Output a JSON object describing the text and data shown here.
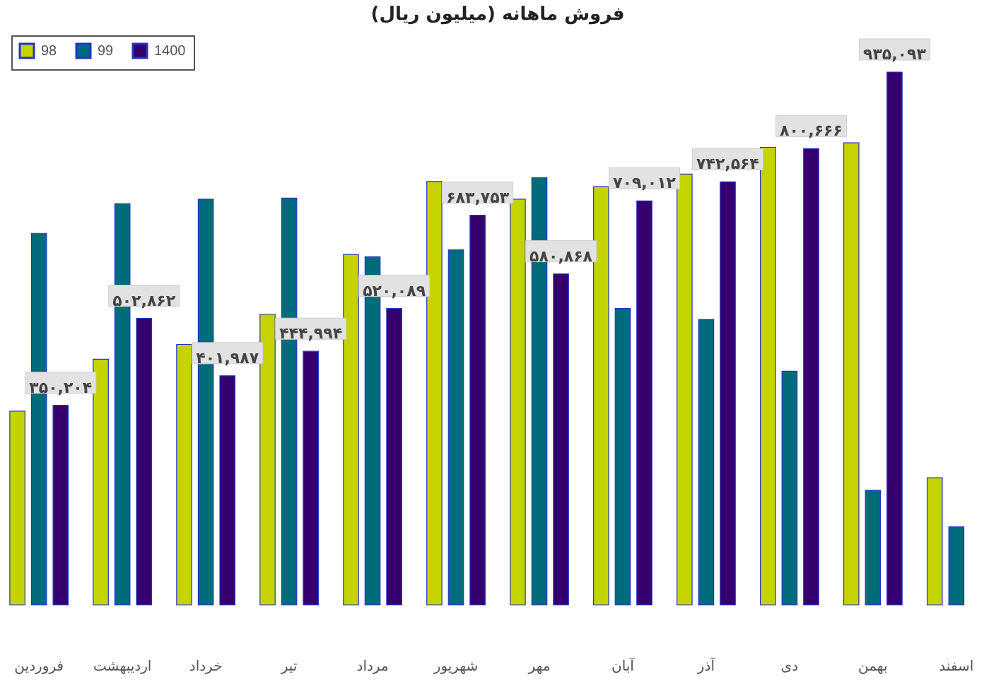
{
  "chart_data": {
    "type": "bar",
    "title": "فروش ماهانه (میلیون ریال)",
    "categories": [
      "فروردین",
      "اردیبهشت",
      "خرداد",
      "تیر",
      "مرداد",
      "شهریور",
      "مهر",
      "آبان",
      "آذر",
      "دی",
      "بهمن",
      "اسفند"
    ],
    "series": [
      {
        "name": "98",
        "color": "#c5d300",
        "values": [
          340000,
          431000,
          457000,
          510000,
          615000,
          743000,
          712000,
          734000,
          756000,
          803000,
          811000,
          223000
        ]
      },
      {
        "name": "99",
        "color": "#006b7a",
        "values": [
          652000,
          704000,
          712000,
          714000,
          611000,
          623000,
          750000,
          520000,
          501000,
          410000,
          201000,
          137000
        ]
      },
      {
        "name": "1400",
        "color": "#35006e",
        "values": [
          350204,
          502862,
          401987,
          444994,
          520089,
          683753,
          580868,
          709012,
          742564,
          800666,
          935093,
          null
        ],
        "value_labels": [
          "۳۵۰,۲۰۴",
          "۵۰۲,۸۶۲",
          "۴۰۱,۹۸۷",
          "۴۴۴,۹۹۴",
          "۵۲۰,۰۸۹",
          "۶۸۳,۷۵۳",
          "۵۸۰,۸۶۸",
          "۷۰۹,۰۱۲",
          "۷۴۲,۵۶۴",
          "۸۰۰,۶۶۶",
          "۹۳۵,۰۹۳",
          null
        ]
      }
    ],
    "legend": "top left"
  }
}
